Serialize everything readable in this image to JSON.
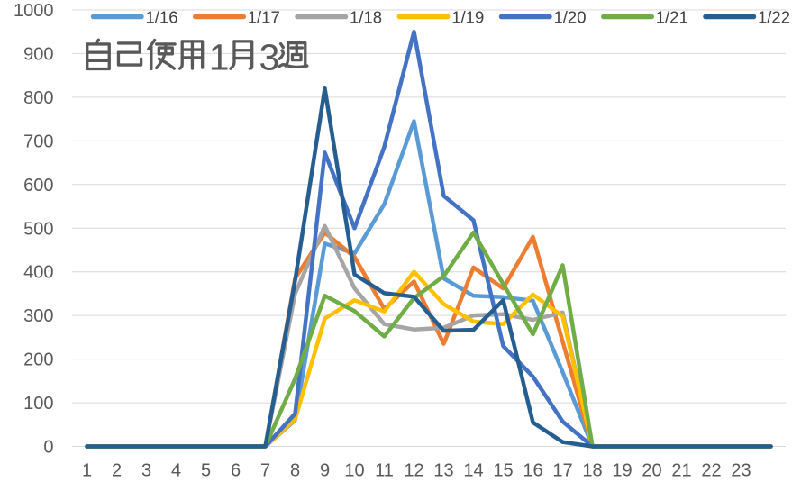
{
  "chart_data": {
    "type": "line",
    "title": "自己使用1月3週",
    "xlabel": "",
    "ylabel": "",
    "x_tick_labels": [
      "1",
      "2",
      "3",
      "4",
      "5",
      "6",
      "7",
      "8",
      "9",
      "10",
      "11",
      "12",
      "13",
      "14",
      "15",
      "16",
      "17",
      "18",
      "19",
      "20",
      "21",
      "22",
      "23",
      ""
    ],
    "ylim": [
      0,
      1000
    ],
    "y_ticks": [
      0,
      100,
      200,
      300,
      400,
      500,
      600,
      700,
      800,
      900,
      1000
    ],
    "grid": "horizontal",
    "legend_position": "top",
    "background_color": "#FFFFFF",
    "gridline_color": "#D9D9D9",
    "tick_label_color": "#595959",
    "title_color": "#595959",
    "legend_text_color": "#404040",
    "series": [
      {
        "name": "1/16",
        "color": "#5B9BD5",
        "values": [
          0,
          0,
          0,
          0,
          0,
          0,
          0,
          60,
          465,
          442,
          555,
          745,
          385,
          345,
          342,
          334,
          170,
          0,
          0,
          0,
          0,
          0,
          0,
          0
        ]
      },
      {
        "name": "1/17",
        "color": "#ED7D31",
        "values": [
          0,
          0,
          0,
          0,
          0,
          0,
          0,
          385,
          490,
          434,
          315,
          378,
          235,
          410,
          362,
          480,
          240,
          0,
          0,
          0,
          0,
          0,
          0,
          0
        ]
      },
      {
        "name": "1/18",
        "color": "#A5A5A5",
        "values": [
          0,
          0,
          0,
          0,
          0,
          0,
          0,
          350,
          505,
          362,
          280,
          268,
          272,
          300,
          303,
          290,
          307,
          0,
          0,
          0,
          0,
          0,
          0,
          0
        ]
      },
      {
        "name": "1/19",
        "color": "#FFC000",
        "values": [
          0,
          0,
          0,
          0,
          0,
          0,
          0,
          62,
          293,
          335,
          309,
          400,
          326,
          286,
          280,
          348,
          298,
          0,
          0,
          0,
          0,
          0,
          0,
          0
        ]
      },
      {
        "name": "1/20",
        "color": "#4472C4",
        "values": [
          0,
          0,
          0,
          0,
          0,
          0,
          0,
          75,
          673,
          500,
          686,
          950,
          574,
          518,
          230,
          160,
          57,
          0,
          0,
          0,
          0,
          0,
          0,
          0
        ]
      },
      {
        "name": "1/21",
        "color": "#70AD47",
        "values": [
          0,
          0,
          0,
          0,
          0,
          0,
          0,
          155,
          345,
          310,
          252,
          340,
          390,
          490,
          372,
          257,
          415,
          0,
          0,
          0,
          0,
          0,
          0,
          0
        ]
      },
      {
        "name": "1/22",
        "color": "#255E91",
        "values": [
          0,
          0,
          0,
          0,
          0,
          0,
          0,
          380,
          820,
          394,
          351,
          343,
          265,
          267,
          335,
          55,
          10,
          0,
          0,
          0,
          0,
          0,
          0,
          0
        ]
      }
    ]
  }
}
